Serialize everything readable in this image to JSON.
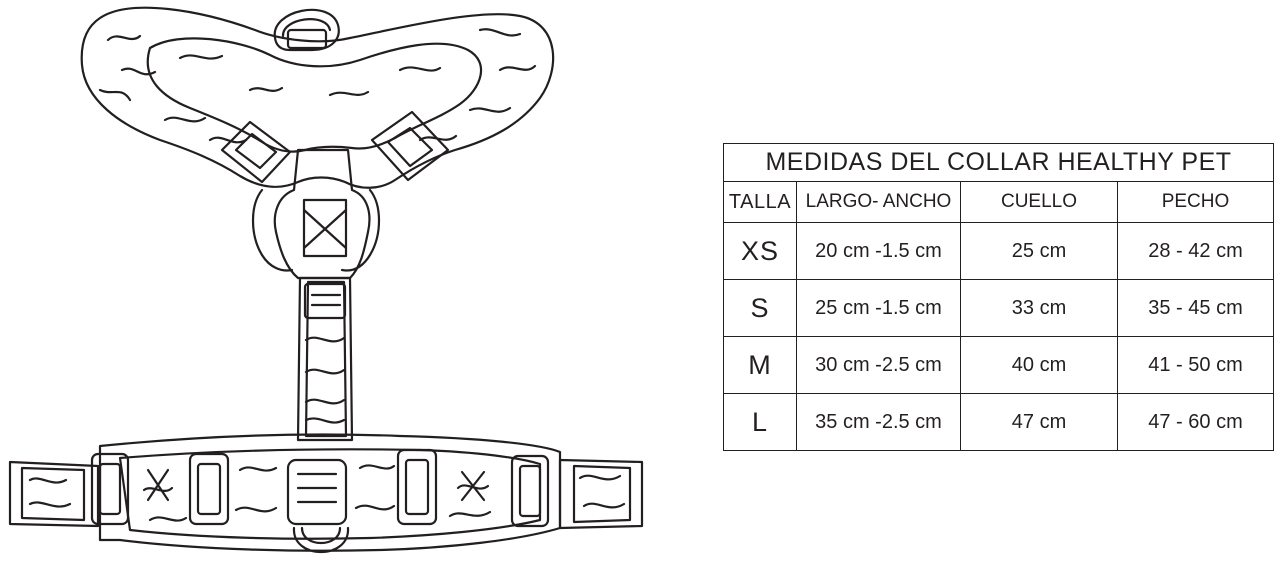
{
  "table": {
    "title": "MEDIDAS  DEL COLLAR HEALTHY PET",
    "headers": [
      "TALLA",
      "LARGO- ANCHO",
      "CUELLO",
      "PECHO"
    ],
    "rows": [
      {
        "size": "XS",
        "largo_ancho": "20 cm -1.5 cm",
        "cuello": "25 cm",
        "pecho": "28 - 42 cm"
      },
      {
        "size": "S",
        "largo_ancho": "25 cm -1.5 cm",
        "cuello": "33 cm",
        "pecho": "35 - 45 cm"
      },
      {
        "size": "M",
        "largo_ancho": "30 cm -2.5 cm",
        "cuello": "40 cm",
        "pecho": "41 - 50 cm"
      },
      {
        "size": "L",
        "largo_ancho": "35 cm -2.5 cm",
        "cuello": "47 cm",
        "pecho": "47 - 60 cm"
      }
    ]
  },
  "illustration": {
    "icon": "dog-harness-line-drawing-icon",
    "stroke_color": "#231f20"
  }
}
